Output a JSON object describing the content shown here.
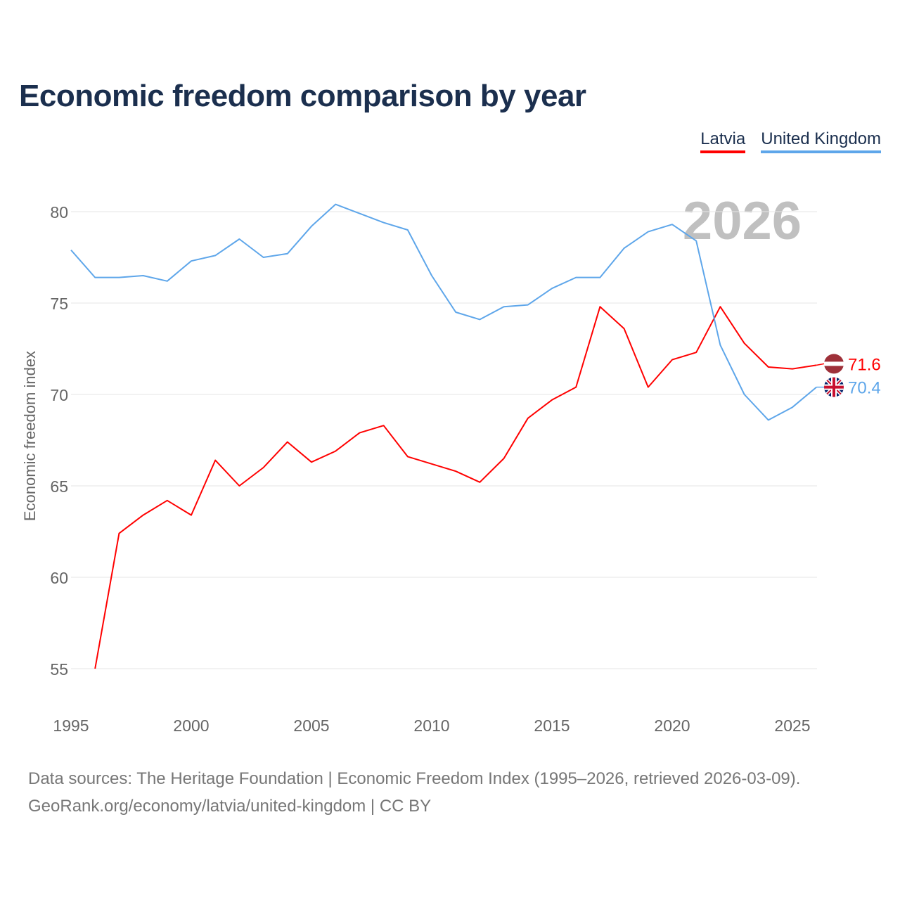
{
  "chart_data": {
    "type": "line",
    "title": "Economic freedom comparison by year",
    "xlabel": "",
    "ylabel": "Economic freedom index",
    "xlim": [
      1995,
      2026
    ],
    "ylim": [
      53,
      81
    ],
    "x_ticks": [
      1995,
      2000,
      2005,
      2010,
      2015,
      2020,
      2025
    ],
    "y_ticks": [
      55,
      60,
      65,
      70,
      75,
      80
    ],
    "grid": true,
    "legend_placement": "top-right",
    "year_watermark": "2026",
    "series": [
      {
        "name": "Latvia",
        "color": "#ff0000",
        "end_label": "71.6",
        "x": [
          1996,
          1997,
          1998,
          1999,
          2000,
          2001,
          2002,
          2003,
          2004,
          2005,
          2006,
          2007,
          2008,
          2009,
          2010,
          2011,
          2012,
          2013,
          2014,
          2015,
          2016,
          2017,
          2018,
          2019,
          2020,
          2021,
          2022,
          2023,
          2024,
          2025,
          2026
        ],
        "values": [
          55.0,
          62.4,
          63.4,
          64.2,
          63.4,
          66.4,
          65.0,
          66.0,
          67.4,
          66.3,
          66.9,
          67.9,
          68.3,
          66.6,
          66.2,
          65.8,
          65.2,
          66.5,
          68.7,
          69.7,
          70.4,
          74.8,
          73.6,
          70.4,
          71.9,
          72.3,
          74.8,
          72.8,
          71.5,
          71.4,
          71.6
        ]
      },
      {
        "name": "United Kingdom",
        "color": "#5ea6ea",
        "end_label": "70.4",
        "x": [
          1995,
          1996,
          1997,
          1998,
          1999,
          2000,
          2001,
          2002,
          2003,
          2004,
          2005,
          2006,
          2007,
          2008,
          2009,
          2010,
          2011,
          2012,
          2013,
          2014,
          2015,
          2016,
          2017,
          2018,
          2019,
          2020,
          2021,
          2022,
          2023,
          2024,
          2025,
          2026
        ],
        "values": [
          77.9,
          76.4,
          76.4,
          76.5,
          76.2,
          77.3,
          77.6,
          78.5,
          77.5,
          77.7,
          79.2,
          80.4,
          79.9,
          79.4,
          79.0,
          76.5,
          74.5,
          74.1,
          74.8,
          74.9,
          75.8,
          76.4,
          76.4,
          78.0,
          78.9,
          79.3,
          78.4,
          72.7,
          70.0,
          68.6,
          69.3,
          70.4
        ]
      }
    ]
  },
  "footer": {
    "line1": "Data sources: The Heritage Foundation | Economic Freedom Index (1995–2026, retrieved 2026-03-09).",
    "line2": "GeoRank.org/economy/latvia/united-kingdom | CC BY"
  }
}
